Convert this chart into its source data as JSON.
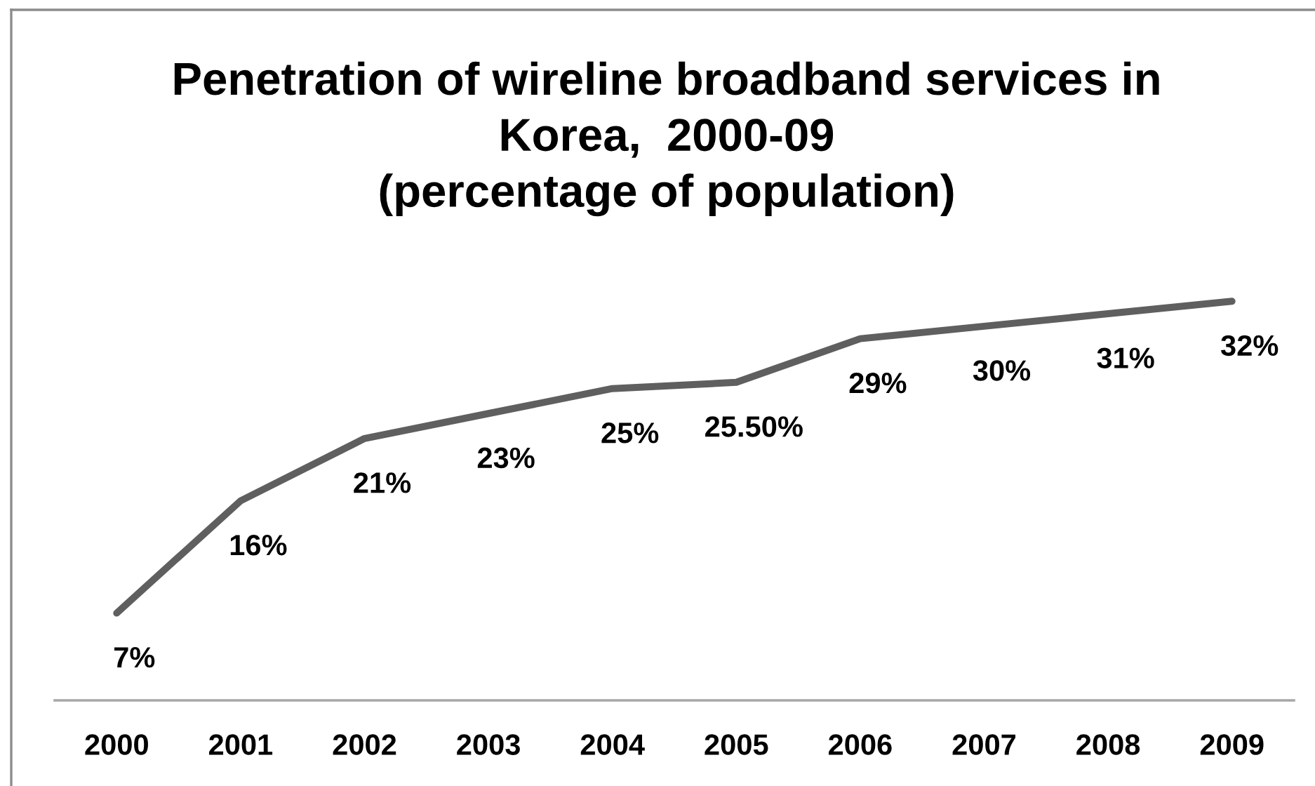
{
  "chart_data": {
    "type": "line",
    "title": "Penetration of wireline broadband services in\nKorea,  2000-09\n(percentage of population)",
    "categories": [
      "2000",
      "2001",
      "2002",
      "2003",
      "2004",
      "2005",
      "2006",
      "2007",
      "2008",
      "2009"
    ],
    "series": [
      {
        "color": "#5f5f5f",
        "values": [
          7,
          16,
          21,
          23,
          25,
          25.5,
          29,
          30,
          31,
          32
        ],
        "value_labels": [
          "7%",
          "16%",
          "21%",
          "23%",
          "25%",
          "25.50%",
          "29%",
          "30%",
          "31%",
          "32%"
        ]
      }
    ],
    "tick_labels": "x",
    "grid": false,
    "marker": "none",
    "line_style": "solid"
  }
}
